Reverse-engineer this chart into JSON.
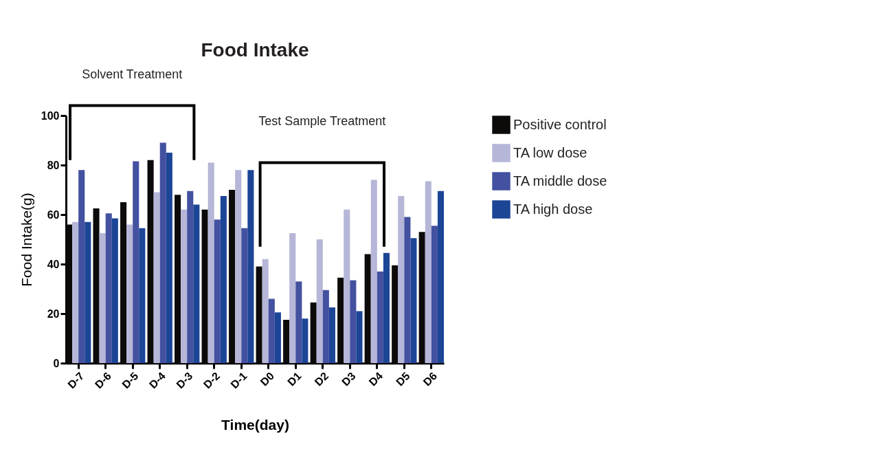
{
  "chart_data": {
    "type": "bar",
    "title": "Food Intake",
    "xlabel": "Time(day)",
    "ylabel": "Food Intake(g)",
    "categories": [
      "D-7",
      "D-6",
      "D-5",
      "D-4",
      "D-3",
      "D-2",
      "D-1",
      "D0",
      "D1",
      "D2",
      "D3",
      "D4",
      "D5",
      "D6"
    ],
    "series": [
      {
        "name": "Positive control",
        "color": "#0d0a0a",
        "values": [
          56,
          62.5,
          65,
          82,
          68,
          62,
          70,
          39,
          17.5,
          24.5,
          34.5,
          44,
          39.5,
          53
        ]
      },
      {
        "name": "TA low dose",
        "color": "#b6b6d8",
        "values": [
          57,
          52.5,
          56,
          69,
          62,
          81,
          78,
          42,
          52.5,
          50,
          62,
          74,
          67.5,
          73.5
        ]
      },
      {
        "name": "TA middle dose",
        "color": "#4351a0",
        "values": [
          78,
          60.5,
          81.5,
          89,
          69.5,
          58,
          54.5,
          26,
          33,
          29.5,
          33.5,
          37,
          59,
          55.5
        ]
      },
      {
        "name": "TA high dose",
        "color": "#1c4596",
        "values": [
          57,
          58.5,
          54.5,
          85,
          64,
          67.5,
          78,
          20.5,
          18,
          22.5,
          21,
          44.5,
          50.5,
          69.5
        ]
      }
    ],
    "ylim": [
      0,
      100
    ],
    "yticks": [
      0,
      20,
      40,
      60,
      80,
      100
    ],
    "grid": false,
    "legend": "right",
    "annotations": [
      "Solvent Treatment",
      "Test Sample Treatment"
    ]
  }
}
